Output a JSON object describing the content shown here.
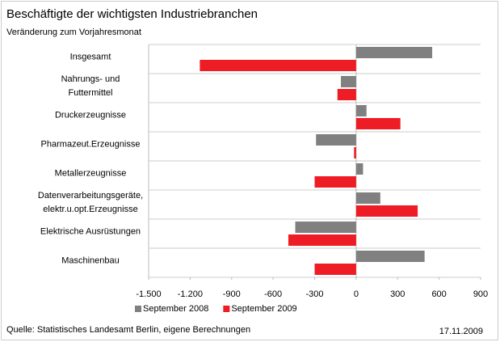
{
  "chart_data": {
    "type": "hbar",
    "title": "Beschäftigte der wichtigsten Industriebranchen",
    "subtitle": "Veränderung zum Vorjahresmonat",
    "categories": [
      "Insgesamt",
      "Nahrungs- und\nFuttermittel",
      "Druckerzeugnisse",
      "Pharmazeut.Erzeugnisse",
      "Metallerzeugnisse",
      "Datenverarbeitungsgeräte,\nelektr.u.opt.Erzeugnisse",
      "Elektrische Ausrüstungen",
      "Maschinenbau"
    ],
    "series": [
      {
        "name": "September 2008",
        "color": "#808080",
        "values": [
          550,
          -110,
          75,
          -290,
          50,
          175,
          -440,
          495
        ]
      },
      {
        "name": "September 2009",
        "color": "#ee1c25",
        "values": [
          -1130,
          -135,
          320,
          -15,
          -300,
          445,
          -490,
          -300
        ]
      }
    ],
    "xlim": [
      -1500,
      900
    ],
    "xticks": [
      {
        "value": -1500,
        "label": "-1.500"
      },
      {
        "value": -1200,
        "label": "-1.200"
      },
      -900,
      -600,
      -300,
      0,
      300,
      600,
      900
    ],
    "legend": "bottom",
    "source": "Quelle: Statistisches Landesamt Berlin, eigene Berechnungen",
    "date": "17.11.2009"
  }
}
